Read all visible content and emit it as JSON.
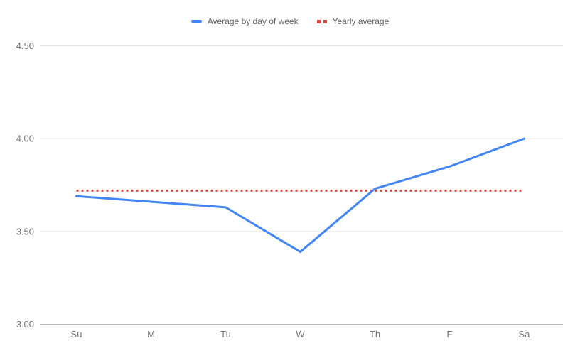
{
  "chart_data": {
    "type": "line",
    "title": "",
    "xlabel": "",
    "ylabel": "",
    "categories": [
      "Su",
      "M",
      "Tu",
      "W",
      "Th",
      "F",
      "Sa"
    ],
    "series": [
      {
        "name": "Average by day of week",
        "color": "#4285f4",
        "line_style": "solid",
        "values": [
          3.69,
          3.66,
          3.63,
          3.39,
          3.73,
          3.85,
          4.0
        ]
      },
      {
        "name": "Yearly average",
        "color": "#db4437",
        "line_style": "dotted",
        "values": [
          3.72,
          3.72,
          3.72,
          3.72,
          3.72,
          3.72,
          3.72
        ]
      }
    ],
    "ylim": [
      3.0,
      4.5
    ],
    "yticks": [
      {
        "value": 3.0,
        "label": "3.00"
      },
      {
        "value": 3.5,
        "label": "3.50"
      },
      {
        "value": 4.0,
        "label": "4.00"
      },
      {
        "value": 4.5,
        "label": "4.50"
      }
    ],
    "grid": true,
    "legend_position": "top",
    "colors": {
      "gridline": "#e3e3e3",
      "axis_line": "#b7b7b7",
      "tick_label": "#757575",
      "legend_text": "#5f6368",
      "background": "#ffffff"
    }
  }
}
